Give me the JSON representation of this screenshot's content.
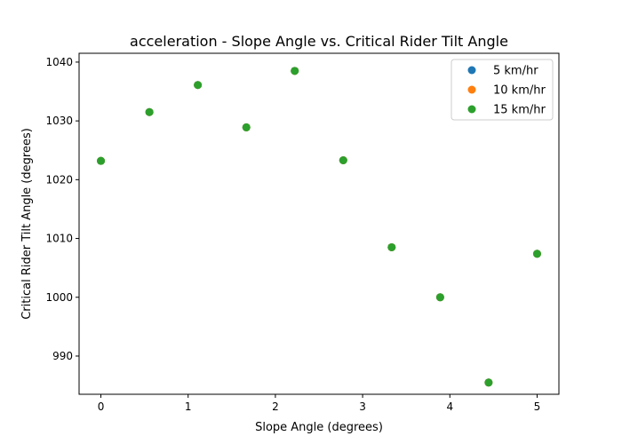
{
  "chart_data": {
    "type": "scatter",
    "title": "acceleration - Slope Angle vs. Critical Rider Tilt Angle",
    "xlabel": "Slope Angle (degrees)",
    "ylabel": "Critical Rider Tilt Angle (degrees)",
    "xlim": [
      -0.25,
      5.25
    ],
    "ylim": [
      983.5,
      1041.5
    ],
    "xticks": [
      0,
      1,
      2,
      3,
      4,
      5
    ],
    "yticks": [
      990,
      1000,
      1010,
      1020,
      1030,
      1040
    ],
    "grid": false,
    "legend_position": "top-right",
    "series": [
      {
        "name": "5 km/hr",
        "color": "#1f77b4",
        "x": [
          0,
          0.556,
          1.111,
          1.667,
          2.222,
          2.778,
          3.333,
          3.889,
          4.444,
          5.0
        ],
        "y": [
          1023.2,
          1031.5,
          1036.1,
          1028.9,
          1038.5,
          1023.3,
          1008.5,
          1000.0,
          985.5,
          1007.4
        ]
      },
      {
        "name": "10 km/hr",
        "color": "#ff7f0e",
        "x": [
          0,
          0.556,
          1.111,
          1.667,
          2.222,
          2.778,
          3.333,
          3.889,
          4.444,
          5.0
        ],
        "y": [
          1023.2,
          1031.5,
          1036.1,
          1028.9,
          1038.5,
          1023.3,
          1008.5,
          1000.0,
          985.5,
          1007.4
        ]
      },
      {
        "name": "15 km/hr",
        "color": "#2ca02c",
        "x": [
          0,
          0.556,
          1.111,
          1.667,
          2.222,
          2.778,
          3.333,
          3.889,
          4.444,
          5.0
        ],
        "y": [
          1023.2,
          1031.5,
          1036.1,
          1028.9,
          1038.5,
          1023.3,
          1008.5,
          1000.0,
          985.5,
          1007.4
        ]
      }
    ]
  }
}
